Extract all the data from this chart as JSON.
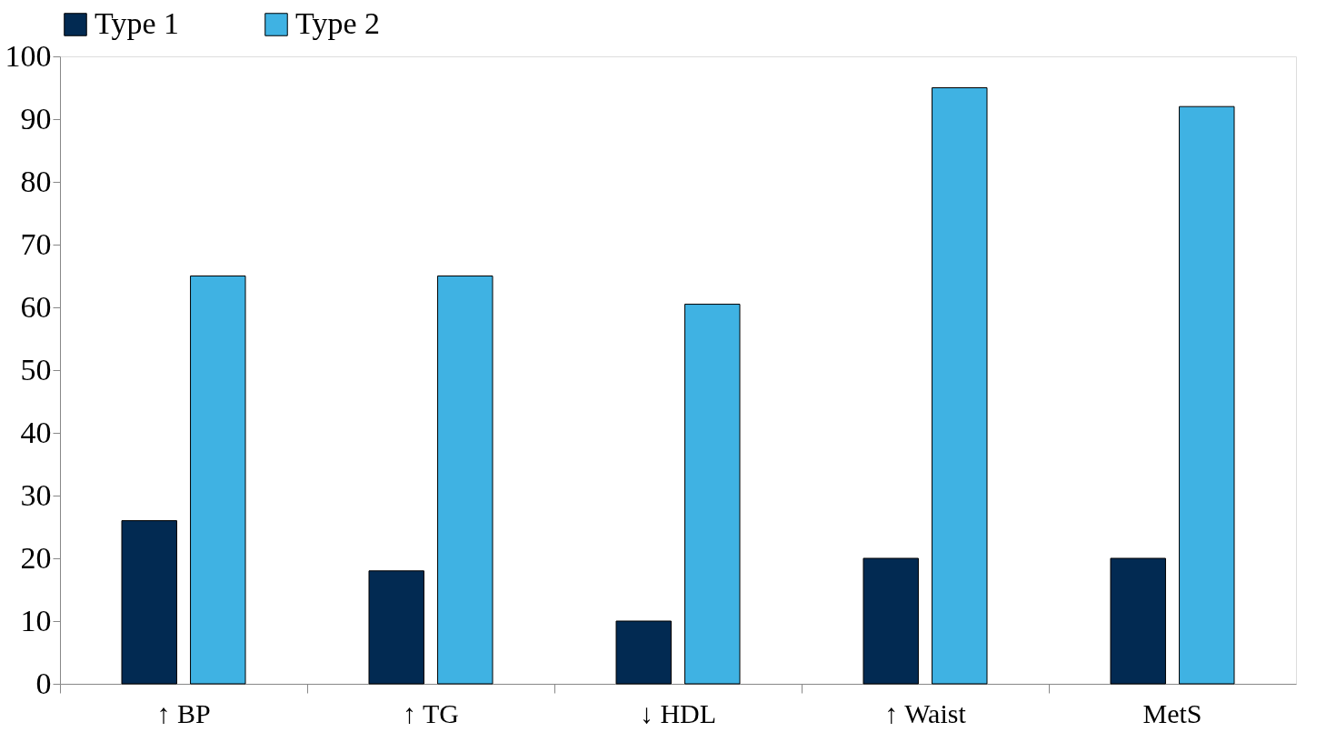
{
  "chart_data": {
    "type": "bar",
    "categories": [
      "↑ BP",
      "↑ TG",
      "↓ HDL",
      "↑ Waist",
      "MetS"
    ],
    "series": [
      {
        "name": "Type 1",
        "color": "#022a52",
        "values": [
          26,
          18,
          10,
          20,
          20
        ]
      },
      {
        "name": "Type 2",
        "color": "#3fb2e3",
        "values": [
          65,
          65,
          60.5,
          95,
          92
        ]
      }
    ],
    "ylim": [
      0,
      100
    ],
    "yticks": [
      0,
      10,
      20,
      30,
      40,
      50,
      60,
      70,
      80,
      90,
      100
    ],
    "grid": false,
    "legend": "top"
  }
}
